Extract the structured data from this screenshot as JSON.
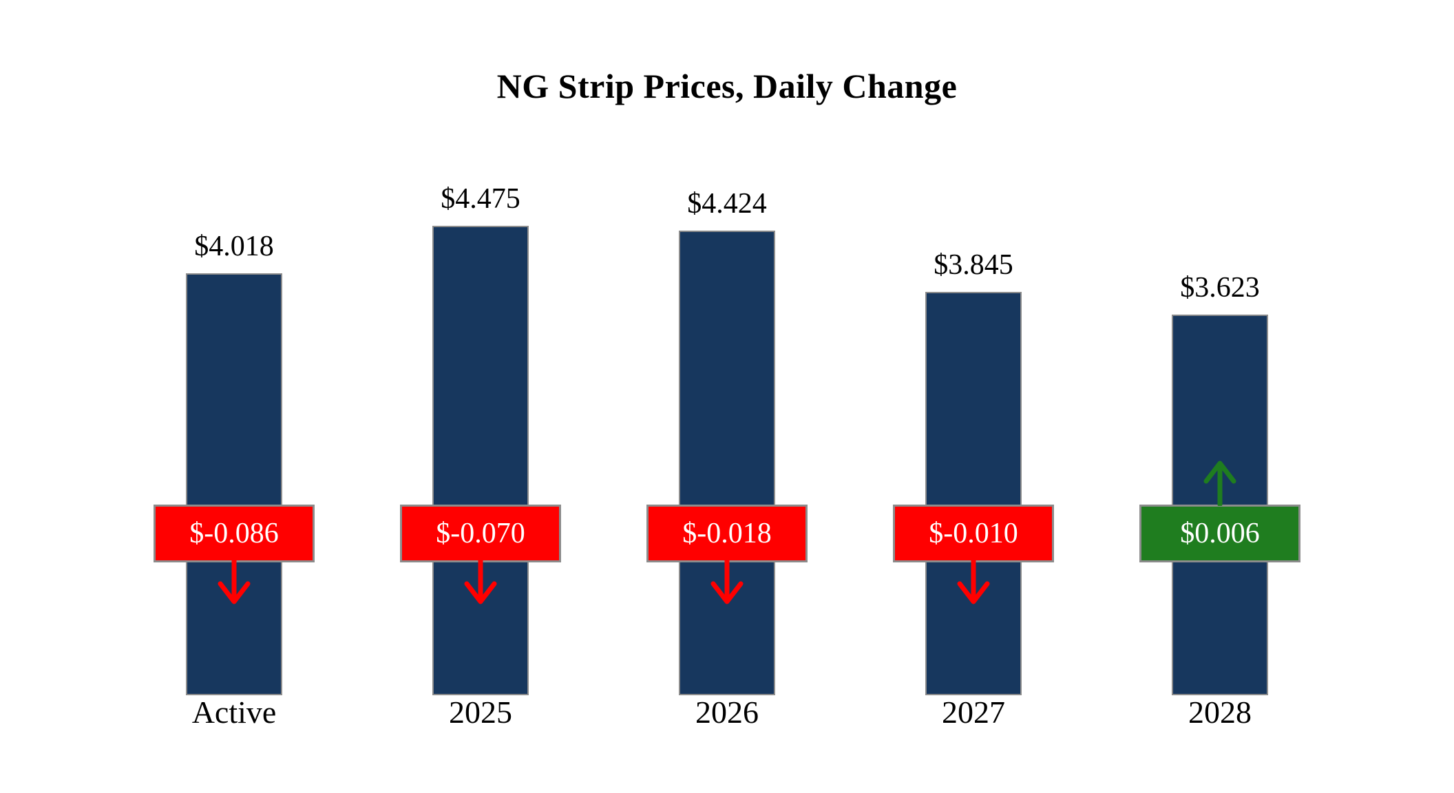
{
  "title": "NG Strip Prices, Daily Change",
  "colors": {
    "bar": "#17375E",
    "negative": "#FF0000",
    "positive": "#1F7D1F",
    "badge_border": "#8C8C8C",
    "badge_text": "#FFFFFF",
    "background": "#FFFFFF",
    "text": "#000000"
  },
  "icons": {
    "down_arrow": "down-arrow-icon",
    "up_arrow": "up-arrow-icon"
  },
  "chart_data": {
    "type": "bar",
    "title": "NG Strip Prices, Daily Change",
    "categories": [
      "Active",
      "2025",
      "2026",
      "2027",
      "2028"
    ],
    "values": [
      4.018,
      4.475,
      4.424,
      3.845,
      3.623
    ],
    "value_labels": [
      "$4.018",
      "$4.475",
      "$4.424",
      "$3.845",
      "$3.623"
    ],
    "series": [
      {
        "name": "Strip Price",
        "values": [
          4.018,
          4.475,
          4.424,
          3.845,
          3.623
        ]
      },
      {
        "name": "Daily Change",
        "values": [
          -0.086,
          -0.07,
          -0.018,
          -0.01,
          0.006
        ]
      }
    ],
    "changes": [
      -0.086,
      -0.07,
      -0.018,
      -0.01,
      0.006
    ],
    "change_labels": [
      "$-0.086",
      "$-0.070",
      "$-0.018",
      "$-0.010",
      "$0.006"
    ],
    "change_directions": [
      "down",
      "down",
      "down",
      "down",
      "up"
    ],
    "xlabel": "",
    "ylabel": "",
    "ylim": [
      0,
      4.5
    ],
    "grid": false,
    "legend": "none"
  }
}
